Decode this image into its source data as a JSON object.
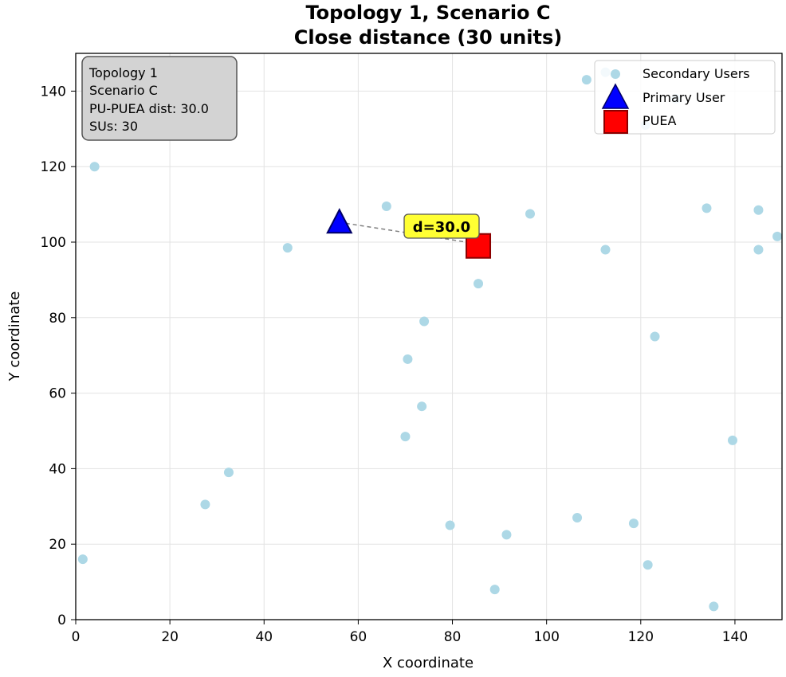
{
  "chart_data": {
    "type": "scatter",
    "title": "Topology 1, Scenario C",
    "subtitle": "Close distance (30 units)",
    "xlabel": "X coordinate",
    "ylabel": "Y coordinate",
    "xlim": [
      0,
      150
    ],
    "ylim": [
      0,
      150
    ],
    "xticks": [
      "0",
      "20",
      "40",
      "60",
      "80",
      "100",
      "120",
      "140"
    ],
    "yticks": [
      "0",
      "20",
      "40",
      "60",
      "80",
      "100",
      "120",
      "140"
    ],
    "grid": true,
    "legend_position": "top-right",
    "series": [
      {
        "name": "Secondary Users",
        "marker": "circle",
        "color": "#add8e6",
        "points": [
          [
            4,
            120
          ],
          [
            45,
            98.5
          ],
          [
            66,
            109.5
          ],
          [
            96.5,
            107.5
          ],
          [
            112.5,
            98
          ],
          [
            134,
            109
          ],
          [
            145,
            108.5
          ],
          [
            149,
            101.5
          ],
          [
            145,
            98
          ],
          [
            85.5,
            89
          ],
          [
            74,
            79
          ],
          [
            123,
            75
          ],
          [
            70.5,
            69
          ],
          [
            73.5,
            56.5
          ],
          [
            70,
            48.5
          ],
          [
            139.5,
            47.5
          ],
          [
            32.5,
            39
          ],
          [
            27.5,
            30.5
          ],
          [
            1.5,
            16
          ],
          [
            79.5,
            25
          ],
          [
            91.5,
            22.5
          ],
          [
            106.5,
            27
          ],
          [
            118.5,
            25.5
          ],
          [
            121.5,
            14.5
          ],
          [
            89,
            8
          ],
          [
            135.5,
            3.5
          ],
          [
            112.5,
            145
          ],
          [
            121,
            131
          ],
          [
            127.5,
            138
          ],
          [
            108.5,
            143
          ]
        ]
      },
      {
        "name": "Primary User",
        "marker": "triangle",
        "color": "#0000ff",
        "points": [
          [
            56,
            105
          ]
        ]
      },
      {
        "name": "PUEA",
        "marker": "square",
        "color": "#ff0000",
        "points": [
          [
            85.5,
            99
          ]
        ]
      }
    ],
    "annotation": {
      "text": "d=30.0",
      "x": 78.5,
      "y": 102.5
    },
    "info_box": [
      "Topology 1",
      "Scenario C",
      "PU-PUEA dist: 30.0",
      "SUs: 30"
    ]
  }
}
